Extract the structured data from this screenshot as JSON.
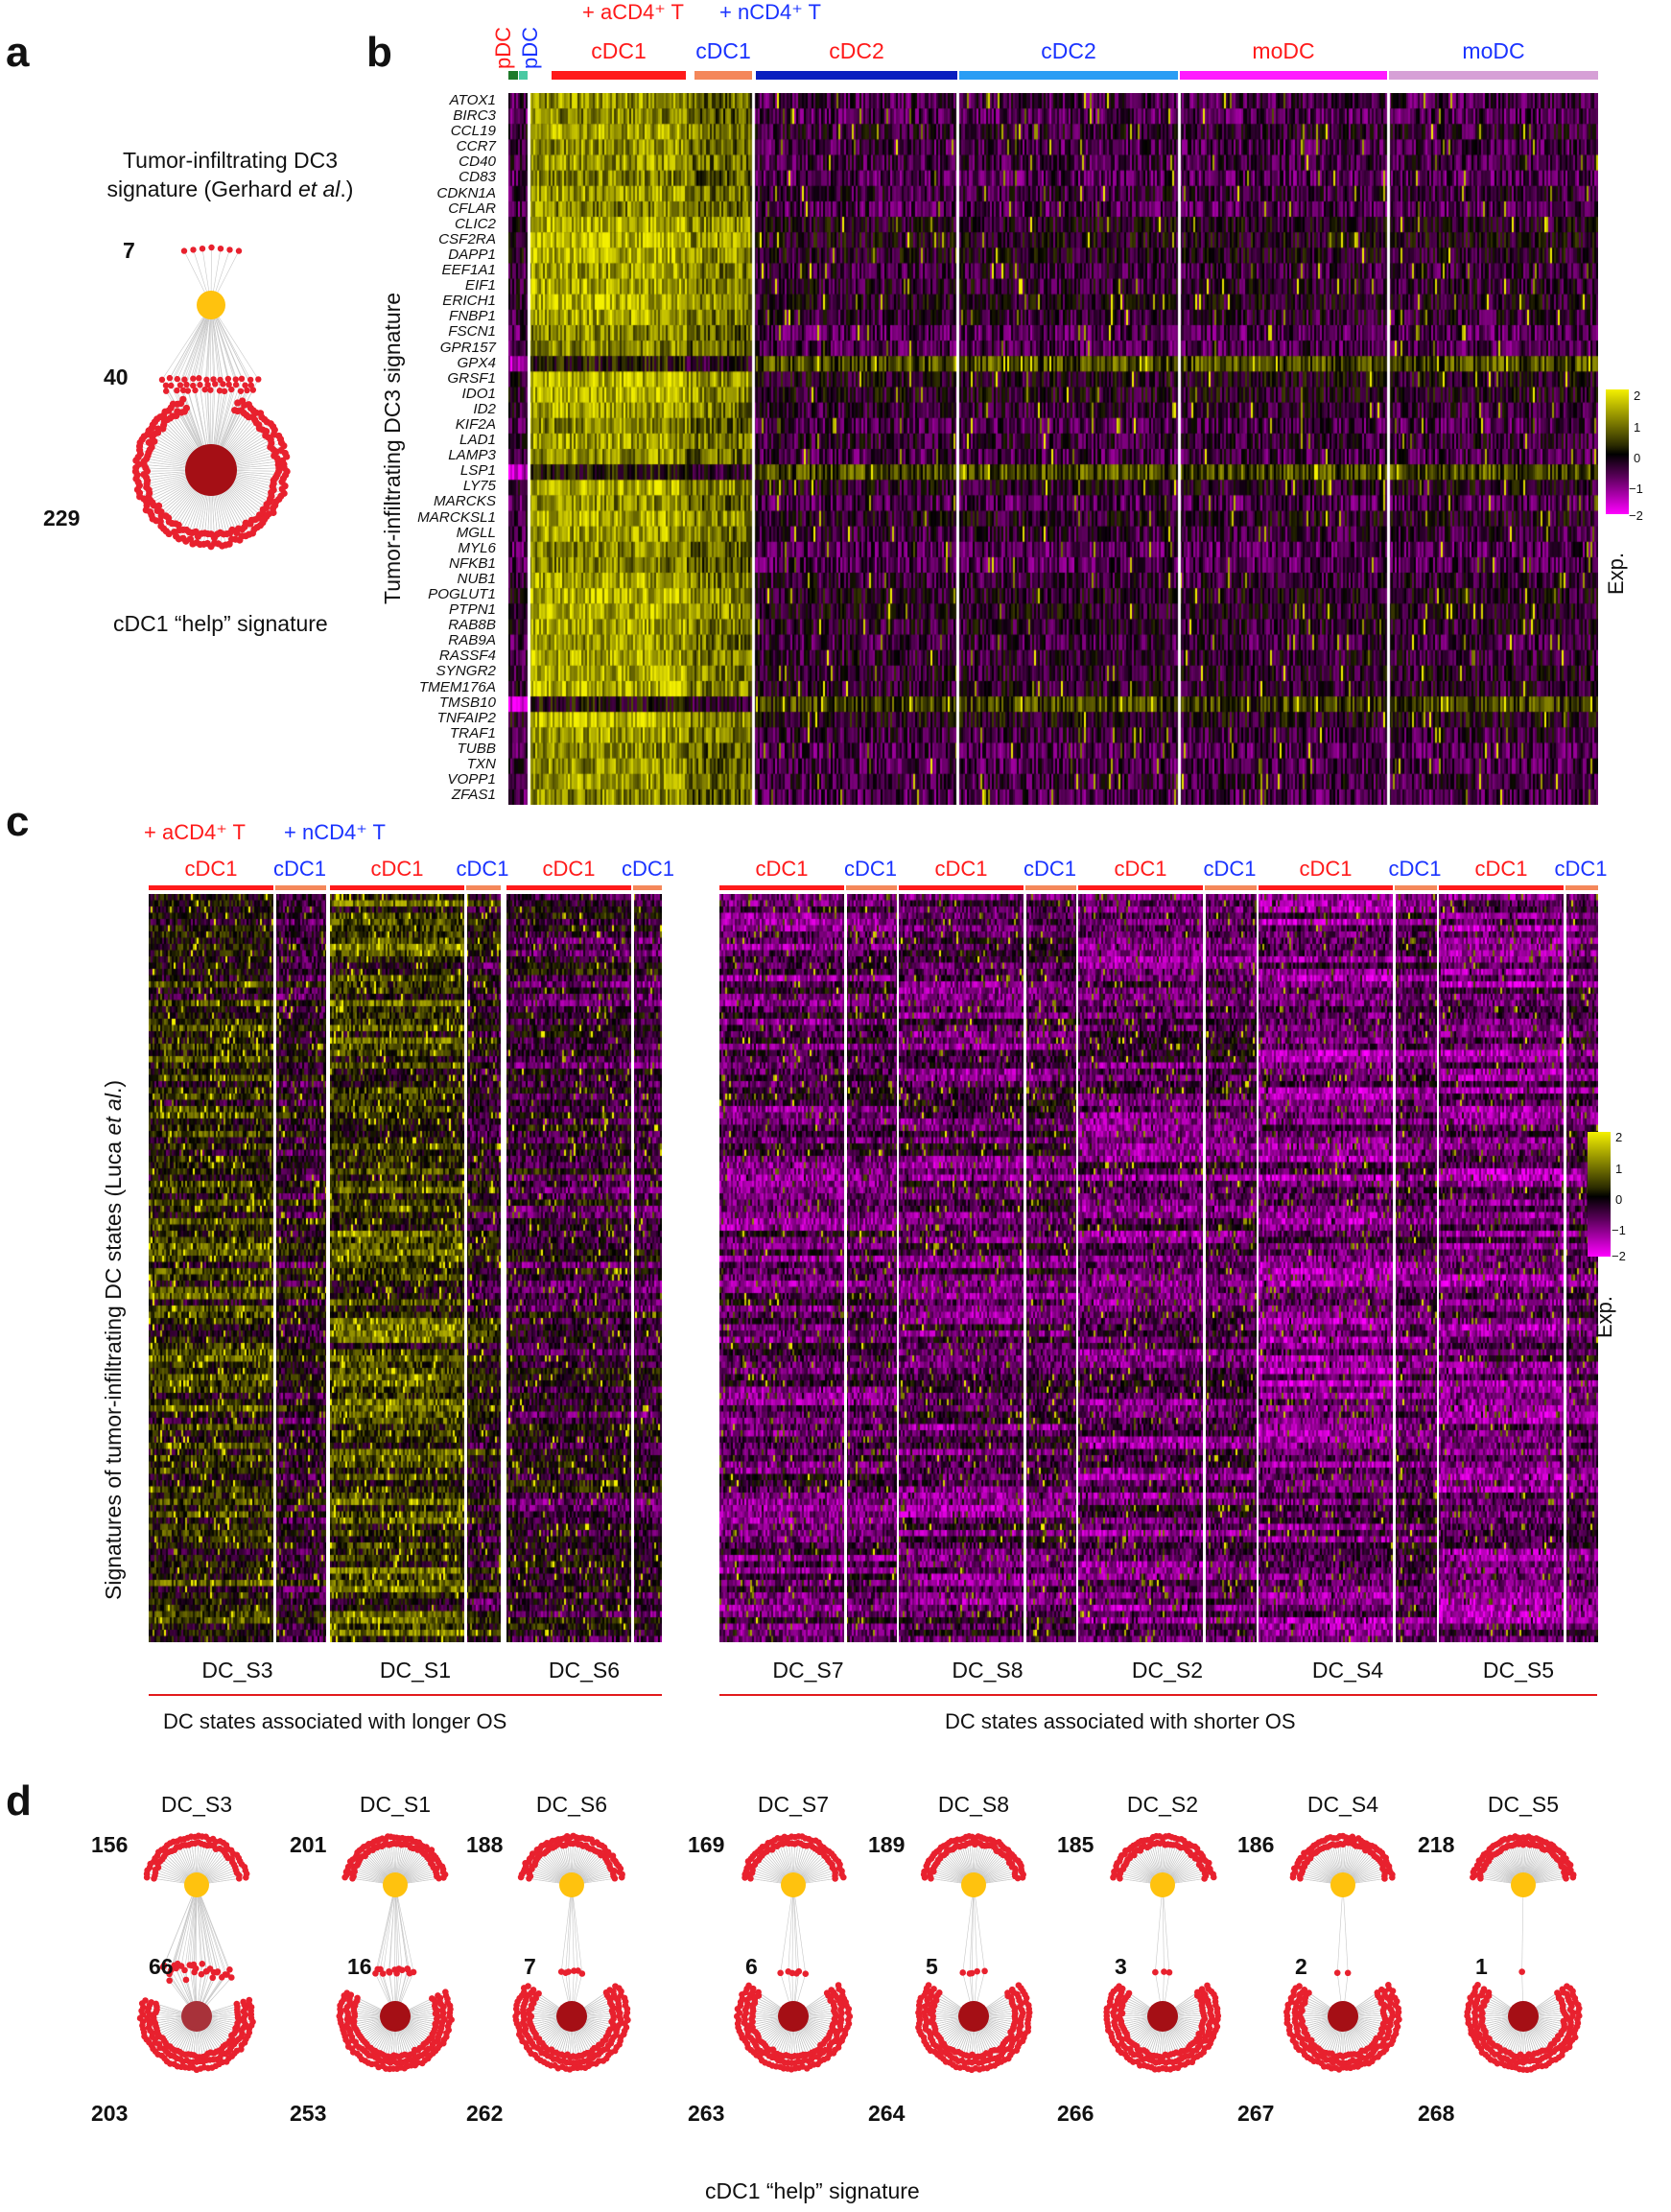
{
  "panel_letters": {
    "a": "a",
    "b": "b",
    "c": "c",
    "d": "d"
  },
  "colors": {
    "yellow_node": "#ffc20e",
    "dark_node": "#a50f15",
    "red_node": "#e8212e",
    "edge": "#c8c8c8",
    "hm_high": "#f4f000",
    "hm_mid": "#000000",
    "hm_low": "#ff00ff"
  },
  "panel_a": {
    "title_line1": "Tumor-infiltrating DC3",
    "title_line2_prefix": "signature (Gerhard ",
    "title_line2_italic": "et al",
    "title_line2_suffix": ".)",
    "count_top": "7",
    "count_mid": "40",
    "count_bottom": "229",
    "caption": "cDC1 “help” signature"
  },
  "panel_b": {
    "legend_acd4": "+ aCD4⁺ T",
    "legend_ncd4": "+ nCD4⁺ T",
    "vertical_labels": [
      {
        "text": "pDC",
        "color": "#ff1a1a"
      },
      {
        "text": "pDC",
        "color": "#1a33ff"
      }
    ],
    "clusters": [
      {
        "label": "cDC1",
        "color_text": "#ff1a1a",
        "bar": "#ff1a1a"
      },
      {
        "label": "cDC1",
        "color_text": "#1a33ff",
        "bar": "#f4875a"
      },
      {
        "label": "cDC2",
        "color_text": "#ff1a1a",
        "bar": "#0a1fbf"
      },
      {
        "label": "cDC2",
        "color_text": "#1a33ff",
        "bar": "#2a9df4"
      },
      {
        "label": "moDC",
        "color_text": "#ff1a1a",
        "bar": "#ff1aff"
      },
      {
        "label": "moDC",
        "color_text": "#1a33ff",
        "bar": "#d6a0d6"
      }
    ],
    "y_axis_label": "Tumor-infiltrating DC3 signature",
    "genes": [
      "ATOX1",
      "BIRC3",
      "CCL19",
      "CCR7",
      "CD40",
      "CD83",
      "CDKN1A",
      "CFLAR",
      "CLIC2",
      "CSF2RA",
      "DAPP1",
      "EEF1A1",
      "EIF1",
      "ERICH1",
      "FNBP1",
      "FSCN1",
      "GPR157",
      "GPX4",
      "GRSF1",
      "IDO1",
      "ID2",
      "KIF2A",
      "LAD1",
      "LAMP3",
      "LSP1",
      "LY75",
      "MARCKS",
      "MARCKSL1",
      "MGLL",
      "MYL6",
      "NFKB1",
      "NUB1",
      "POGLUT1",
      "PTPN1",
      "RAB8B",
      "RAB9A",
      "RASSF4",
      "SYNGR2",
      "TMEM176A",
      "TMSB10",
      "TNFAIP2",
      "TRAF1",
      "TUBB",
      "TXN",
      "VOPP1",
      "ZFAS1"
    ],
    "colorbar_ticks": [
      "2",
      "1",
      "0",
      "−1",
      "−2"
    ],
    "colorbar_label": "Exp."
  },
  "panel_c": {
    "legend_acd4": "+ aCD4⁺ T",
    "legend_ncd4": "+ nCD4⁺ T",
    "y_axis_label_prefix": "Signatures of tumor-infiltrating DC states (Luca ",
    "y_axis_label_italic": "et al",
    "y_axis_label_suffix": ".)",
    "blocks": [
      {
        "state": "DC_S3",
        "a_label": "cDC1",
        "n_label": "cDC1"
      },
      {
        "state": "DC_S1",
        "a_label": "cDC1",
        "n_label": "cDC1"
      },
      {
        "state": "DC_S6",
        "a_label": "cDC1",
        "n_label": "cDC1"
      },
      {
        "state": "DC_S7",
        "a_label": "cDC1",
        "n_label": "cDC1"
      },
      {
        "state": "DC_S8",
        "a_label": "cDC1",
        "n_label": "cDC1"
      },
      {
        "state": "DC_S2",
        "a_label": "cDC1",
        "n_label": "cDC1"
      },
      {
        "state": "DC_S4",
        "a_label": "cDC1",
        "n_label": "cDC1"
      },
      {
        "state": "DC_S5",
        "a_label": "cDC1",
        "n_label": "cDC1"
      }
    ],
    "group_longer": "DC states associated with longer OS",
    "group_shorter": "DC states associated with shorter OS",
    "colorbar_ticks": [
      "2",
      "1",
      "0",
      "−1",
      "−2"
    ],
    "colorbar_label": "Exp."
  },
  "panel_d": {
    "networks": [
      {
        "state": "DC_S3",
        "top": "156",
        "mid": "66",
        "bottom": "203"
      },
      {
        "state": "DC_S1",
        "top": "201",
        "mid": "16",
        "bottom": "253"
      },
      {
        "state": "DC_S6",
        "top": "188",
        "mid": "7",
        "bottom": "262"
      },
      {
        "state": "DC_S7",
        "top": "169",
        "mid": "6",
        "bottom": "263"
      },
      {
        "state": "DC_S8",
        "top": "189",
        "mid": "5",
        "bottom": "264"
      },
      {
        "state": "DC_S2",
        "top": "185",
        "mid": "3",
        "bottom": "266"
      },
      {
        "state": "DC_S4",
        "top": "186",
        "mid": "2",
        "bottom": "267"
      },
      {
        "state": "DC_S5",
        "top": "218",
        "mid": "1",
        "bottom": "268"
      }
    ],
    "caption": "cDC1 “help” signature"
  }
}
